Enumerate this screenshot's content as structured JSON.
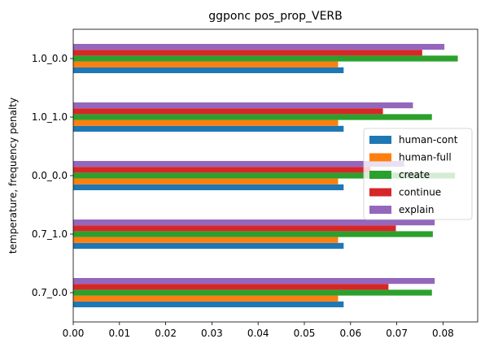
{
  "chart_data": {
    "type": "bar",
    "orientation": "horizontal",
    "title": "ggponc pos_prop_VERB",
    "xlabel": "",
    "ylabel": "temperature, frequency penalty",
    "categories": [
      "0.7_0.0",
      "0.7_1.0",
      "0.0_0.0",
      "1.0_1.0",
      "1.0_0.0"
    ],
    "xlim": [
      0.0,
      0.0875
    ],
    "xticks": [
      "0.00",
      "0.01",
      "0.02",
      "0.03",
      "0.04",
      "0.05",
      "0.06",
      "0.07",
      "0.08"
    ],
    "xtick_values": [
      0,
      0.01,
      0.02,
      0.03,
      0.04,
      0.05,
      0.06,
      0.07,
      0.08
    ],
    "grid": false,
    "legend_position": "center-right",
    "series": [
      {
        "name": "human-cont",
        "color": "#1f77b4",
        "values": [
          0.0585,
          0.0585,
          0.0585,
          0.0585,
          0.0585
        ]
      },
      {
        "name": "human-full",
        "color": "#ff7f0e",
        "values": [
          0.0573,
          0.0573,
          0.0573,
          0.0573,
          0.0573
        ]
      },
      {
        "name": "create",
        "color": "#2ca02c",
        "values": [
          0.0776,
          0.0778,
          0.0826,
          0.0776,
          0.0832
        ]
      },
      {
        "name": "continue",
        "color": "#d62728",
        "values": [
          0.0682,
          0.0698,
          0.0643,
          0.067,
          0.0755
        ]
      },
      {
        "name": "explain",
        "color": "#9467bd",
        "values": [
          0.0782,
          0.0782,
          0.0716,
          0.0735,
          0.0803
        ]
      }
    ]
  }
}
